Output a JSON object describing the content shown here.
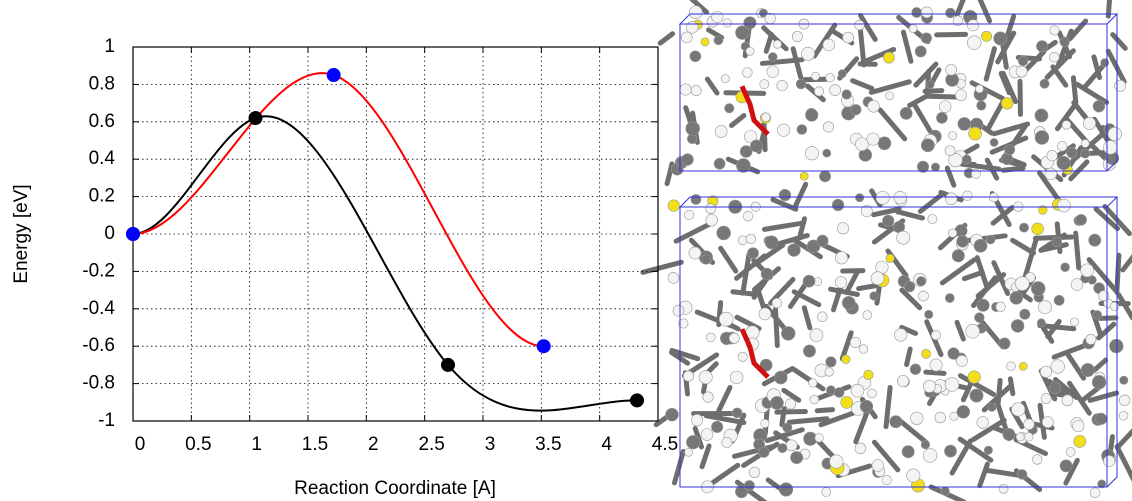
{
  "chart_data": {
    "type": "line",
    "xlabel": "Reaction Coordinate [A]",
    "ylabel": "Energy [eV]",
    "xlim": [
      0,
      4.5
    ],
    "ylim": [
      -1,
      1
    ],
    "xticks": [
      0,
      0.5,
      1,
      1.5,
      2,
      2.5,
      3,
      3.5,
      4,
      4.5
    ],
    "yticks": [
      -1,
      -0.8,
      -0.6,
      -0.4,
      -0.2,
      0,
      0.2,
      0.4,
      0.6,
      0.8,
      1
    ],
    "grid": true,
    "series": [
      {
        "color": "#000000",
        "marker_color": "#000000",
        "x": [
          0,
          1.05,
          2.7,
          4.32
        ],
        "values": [
          0,
          0.62,
          -0.7,
          -0.89
        ]
      },
      {
        "color": "#ff0000",
        "marker_color": "#0000ff",
        "x": [
          0,
          1.72,
          3.52
        ],
        "values": [
          0,
          0.85,
          -0.6
        ]
      }
    ]
  }
}
